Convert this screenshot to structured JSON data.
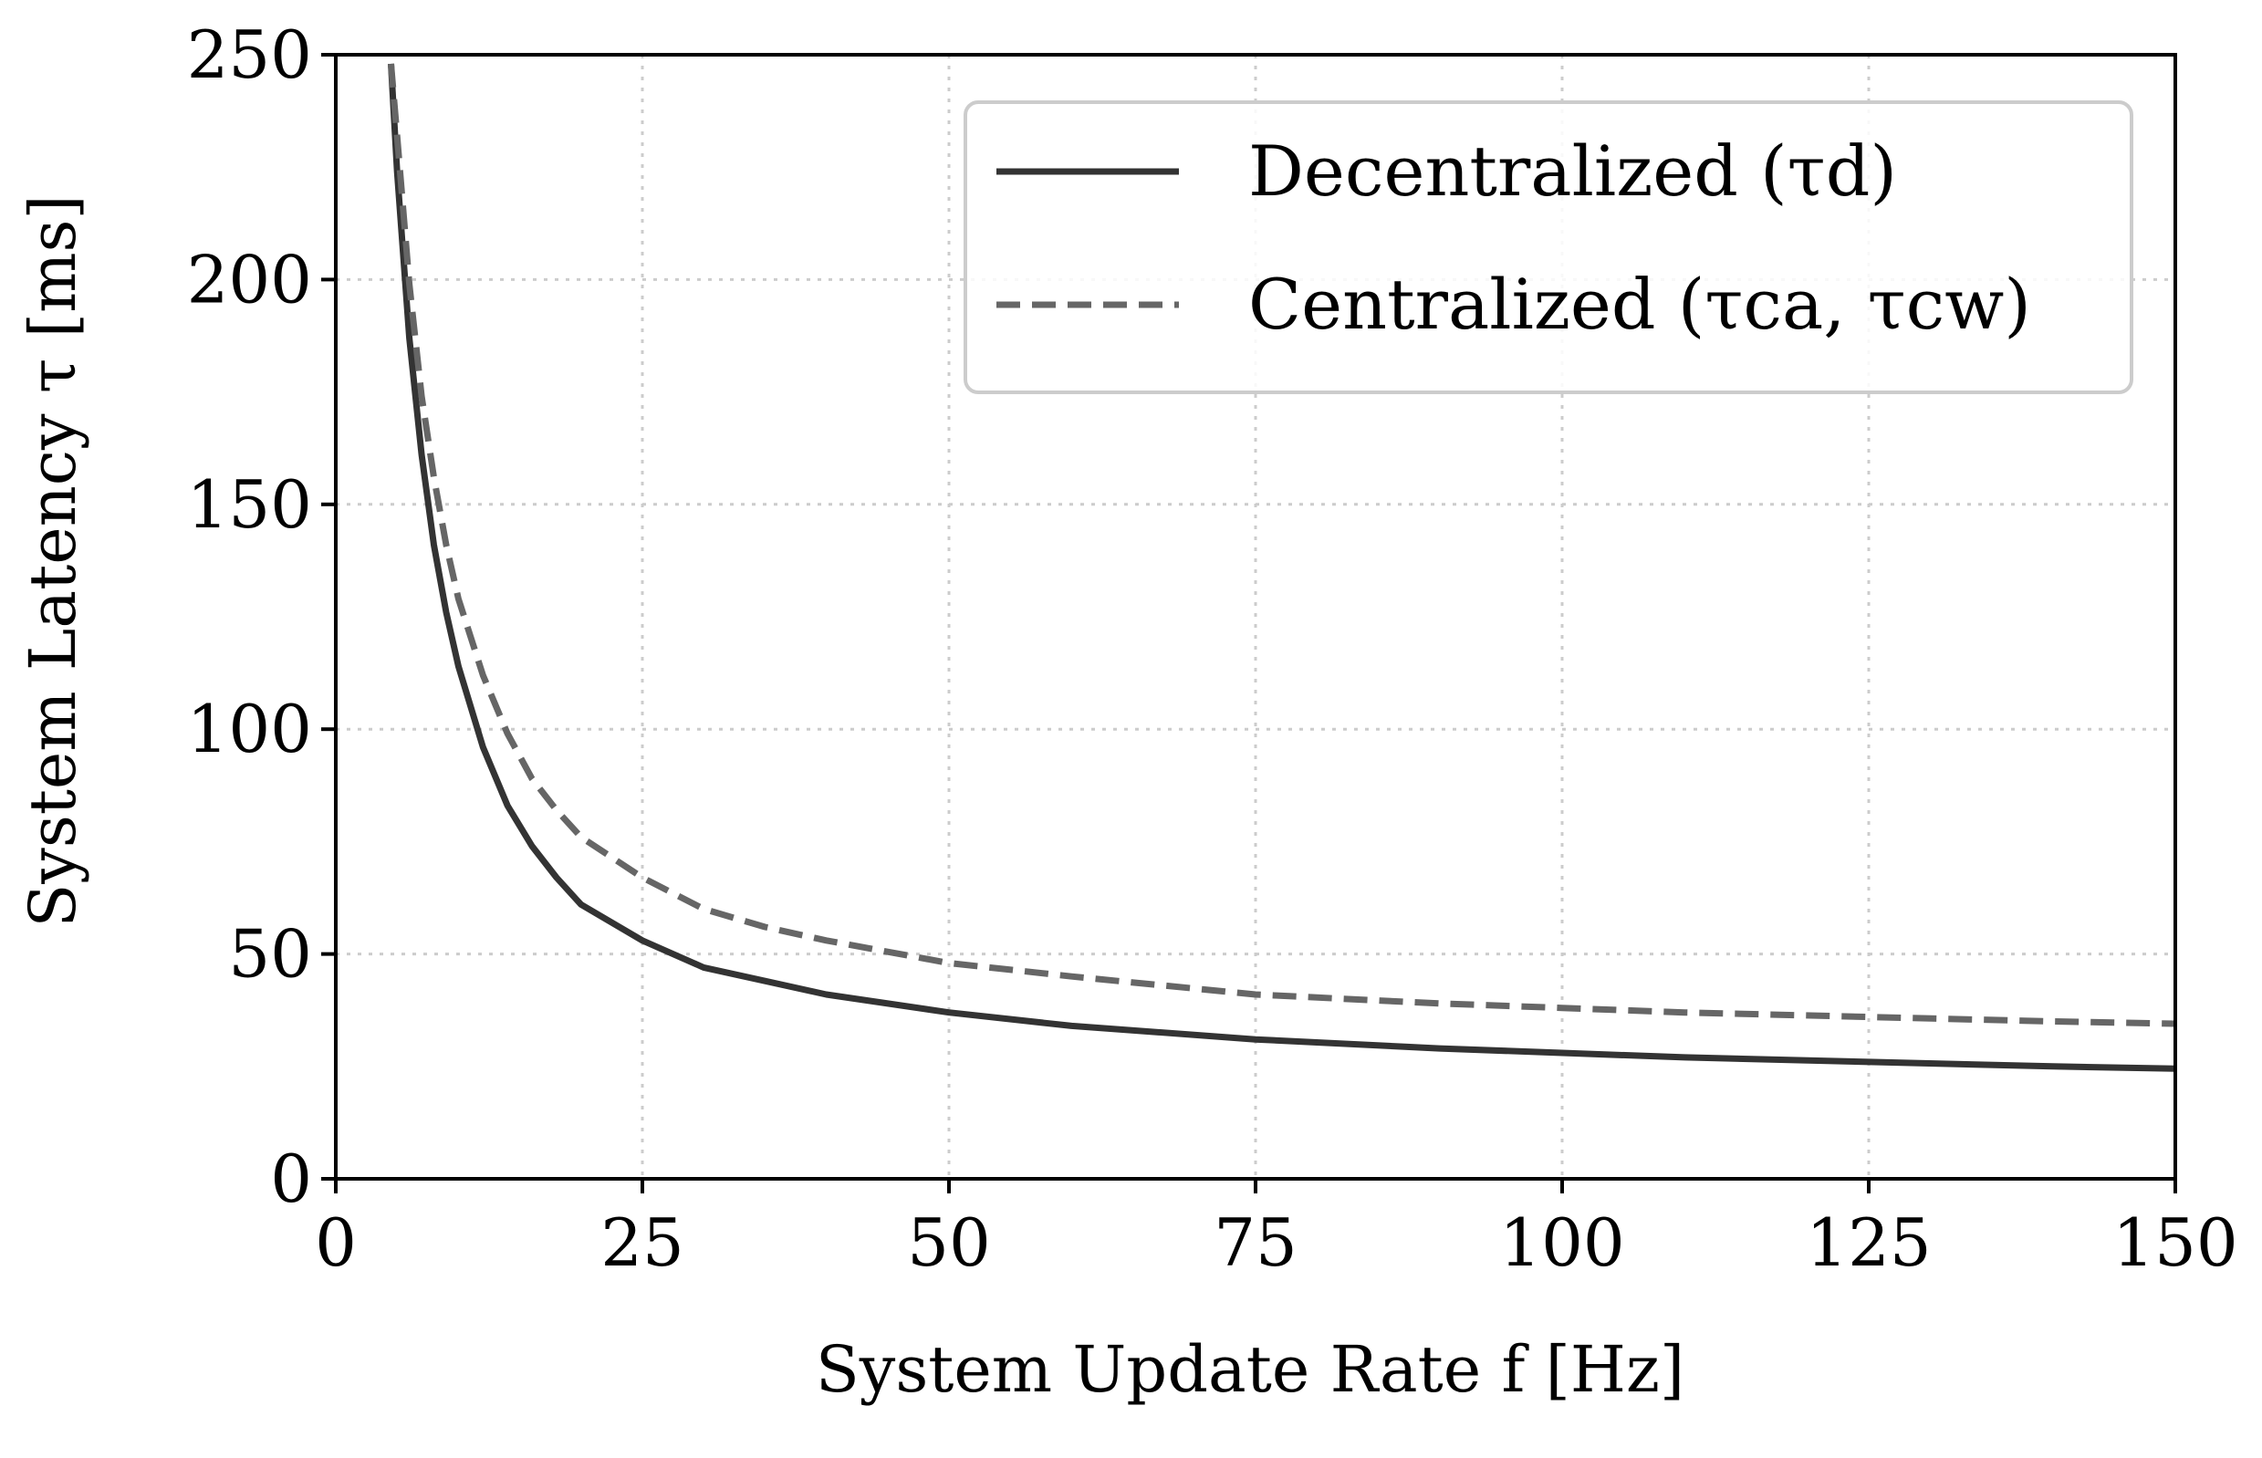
{
  "chart_data": {
    "type": "line",
    "title": "",
    "xlabel": "System Update Rate f [Hz]",
    "ylabel": "System Latency τ [ms]",
    "xlim": [
      0,
      150
    ],
    "ylim": [
      0,
      250
    ],
    "xticks": [
      0,
      25,
      50,
      75,
      100,
      125,
      150
    ],
    "yticks": [
      0,
      50,
      100,
      150,
      200,
      250
    ],
    "grid": true,
    "legend_position": "top-right",
    "series": [
      {
        "name": "Decentralized (τd)",
        "style": "solid",
        "color": "#333333",
        "x": [
          4.5,
          5,
          6,
          7,
          8,
          9,
          10,
          12,
          14,
          16,
          18,
          20,
          25,
          30,
          35,
          40,
          50,
          60,
          75,
          90,
          100,
          110,
          125,
          140,
          150
        ],
        "y": [
          248,
          224,
          187,
          161,
          141,
          126,
          114,
          96,
          83,
          74,
          67,
          61,
          53,
          47,
          44,
          41,
          37,
          34,
          31,
          29,
          28,
          27,
          26,
          25,
          24.5
        ]
      },
      {
        "name": "Centralized (τca, τcw)",
        "style": "dashed",
        "color": "#666666",
        "x": [
          4.5,
          5,
          6,
          7,
          8,
          9,
          10,
          12,
          14,
          16,
          18,
          20,
          25,
          30,
          35,
          40,
          50,
          60,
          75,
          90,
          100,
          110,
          125,
          140,
          150
        ],
        "y": [
          248,
          232,
          199,
          174,
          156,
          141,
          129,
          112,
          99,
          89,
          82,
          76,
          67,
          60,
          56,
          53,
          48,
          45,
          41,
          39,
          38,
          37,
          36,
          35,
          34.5
        ]
      }
    ]
  }
}
